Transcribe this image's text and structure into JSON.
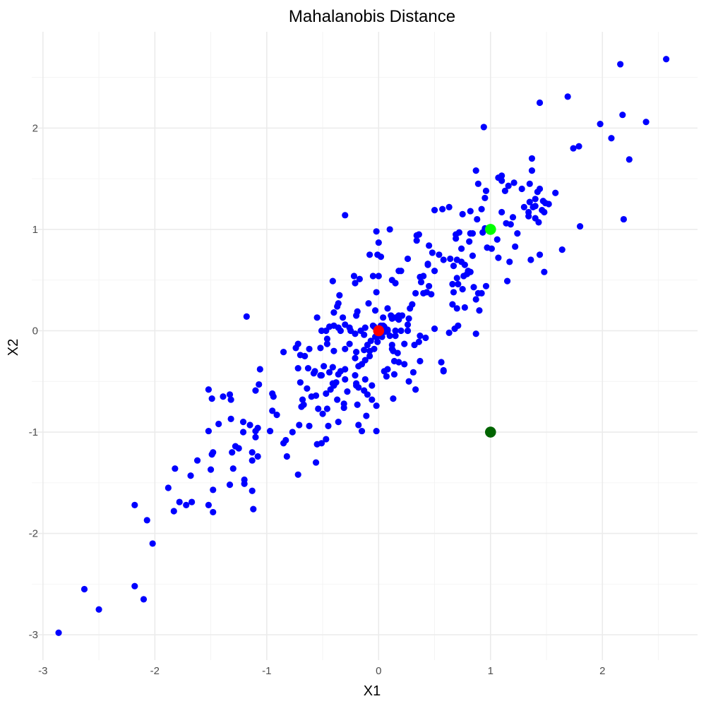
{
  "chart_data": {
    "type": "scatter",
    "title": "Mahalanobis Distance",
    "xlabel": "X1",
    "ylabel": "X2",
    "xlim": [
      -3.1,
      2.85
    ],
    "ylim": [
      -3.25,
      2.95
    ],
    "x_ticks": [
      -3,
      -2,
      -1,
      0,
      1,
      2
    ],
    "y_ticks": [
      -3,
      -2,
      -1,
      0,
      1,
      2
    ],
    "grid": true,
    "colors": {
      "points": "#0000ff",
      "center": "#ff0000",
      "light_green": "#00ff00",
      "dark_green": "#006400"
    },
    "highlights": [
      {
        "x": 0,
        "y": 0,
        "color": "#ff0000"
      },
      {
        "x": 1,
        "y": 1,
        "color": "#00ff00"
      },
      {
        "x": 1,
        "y": -1,
        "color": "#006400"
      }
    ],
    "points": [
      [
        -2.86,
        -2.98
      ],
      [
        -2.63,
        -2.55
      ],
      [
        -2.5,
        -2.75
      ],
      [
        -2.18,
        -2.52
      ],
      [
        -2.1,
        -2.65
      ],
      [
        -2.02,
        -2.1
      ],
      [
        -2.07,
        -1.87
      ],
      [
        -2.18,
        -1.72
      ],
      [
        -1.88,
        -1.55
      ],
      [
        -1.83,
        -1.78
      ],
      [
        -1.78,
        -1.69
      ],
      [
        -1.72,
        -1.72
      ],
      [
        -1.67,
        -1.69
      ],
      [
        -1.82,
        -1.36
      ],
      [
        -1.68,
        -1.43
      ],
      [
        -1.62,
        -1.28
      ],
      [
        -1.52,
        -1.72
      ],
      [
        -1.48,
        -1.79
      ],
      [
        -1.48,
        -1.57
      ],
      [
        -1.5,
        -1.37
      ],
      [
        -1.49,
        -1.22
      ],
      [
        -1.48,
        -1.2
      ],
      [
        -1.52,
        -0.99
      ],
      [
        -1.43,
        -0.92
      ],
      [
        -1.52,
        -0.58
      ],
      [
        -1.49,
        -0.67
      ],
      [
        -1.39,
        -0.65
      ],
      [
        -1.33,
        -1.52
      ],
      [
        -1.3,
        -1.36
      ],
      [
        -1.31,
        -1.2
      ],
      [
        -1.28,
        -1.14
      ],
      [
        -1.25,
        -1.16
      ],
      [
        -1.2,
        -1.47
      ],
      [
        -1.2,
        -1.51
      ],
      [
        -1.13,
        -1.58
      ],
      [
        -1.12,
        -1.76
      ],
      [
        -1.13,
        -1.28
      ],
      [
        -1.13,
        -1.2
      ],
      [
        -1.08,
        -1.24
      ],
      [
        -1.1,
        -1.05
      ],
      [
        -1.1,
        -0.99
      ],
      [
        -1.08,
        -0.96
      ],
      [
        -1.21,
        -0.9
      ],
      [
        -1.21,
        -1.0
      ],
      [
        -1.15,
        -0.93
      ],
      [
        -1.32,
        -0.87
      ],
      [
        -1.33,
        -0.63
      ],
      [
        -1.32,
        -0.68
      ],
      [
        -1.1,
        -0.59
      ],
      [
        -1.07,
        -0.53
      ],
      [
        -1.06,
        -0.38
      ],
      [
        -0.95,
        -0.62
      ],
      [
        -0.94,
        -0.65
      ],
      [
        -0.95,
        -0.79
      ],
      [
        -0.91,
        -0.83
      ],
      [
        -0.97,
        -0.99
      ],
      [
        -1.18,
        0.14
      ],
      [
        -0.85,
        -1.11
      ],
      [
        -0.83,
        -1.08
      ],
      [
        -0.82,
        -1.24
      ],
      [
        -0.72,
        -1.42
      ],
      [
        -0.77,
        -1.0
      ],
      [
        -0.71,
        -0.93
      ],
      [
        -0.68,
        -0.68
      ],
      [
        -0.69,
        -0.75
      ],
      [
        -0.67,
        -0.73
      ],
      [
        -0.7,
        -0.51
      ],
      [
        -0.72,
        -0.37
      ],
      [
        -0.64,
        -0.57
      ],
      [
        -0.6,
        -0.65
      ],
      [
        -0.62,
        -0.94
      ],
      [
        -0.56,
        -1.3
      ],
      [
        -0.55,
        -1.12
      ],
      [
        -0.51,
        -1.11
      ],
      [
        -0.47,
        -1.07
      ],
      [
        -0.45,
        -0.94
      ],
      [
        -0.46,
        -0.77
      ],
      [
        -0.47,
        -0.62
      ],
      [
        -0.54,
        -0.77
      ],
      [
        -0.56,
        -0.64
      ],
      [
        -0.63,
        -0.37
      ],
      [
        -0.66,
        -0.25
      ],
      [
        -0.7,
        -0.24
      ],
      [
        -0.72,
        -0.13
      ],
      [
        -0.85,
        -0.21
      ],
      [
        -0.74,
        -0.17
      ],
      [
        -0.62,
        -0.18
      ],
      [
        -0.57,
        -0.4
      ],
      [
        -0.52,
        -0.44
      ],
      [
        -0.51,
        -0.44
      ],
      [
        -0.49,
        -0.35
      ],
      [
        -0.44,
        -0.41
      ],
      [
        -0.41,
        -0.36
      ],
      [
        -0.41,
        -0.52
      ],
      [
        -0.4,
        -0.54
      ],
      [
        -0.38,
        -0.51
      ],
      [
        -0.36,
        -0.43
      ],
      [
        -0.34,
        -0.4
      ],
      [
        -0.3,
        -0.48
      ],
      [
        -0.28,
        -0.6
      ],
      [
        -0.31,
        -0.72
      ],
      [
        -0.36,
        -0.9
      ],
      [
        -0.31,
        -0.76
      ],
      [
        -0.2,
        -0.52
      ],
      [
        -0.2,
        -0.54
      ],
      [
        -0.18,
        -0.56
      ],
      [
        -0.19,
        -0.73
      ],
      [
        -0.18,
        -0.93
      ],
      [
        -0.15,
        -0.99
      ],
      [
        -0.11,
        -0.84
      ],
      [
        -0.06,
        -0.54
      ],
      [
        -0.02,
        -0.74
      ],
      [
        -0.02,
        -0.99
      ],
      [
        -0.13,
        -0.59
      ],
      [
        -0.12,
        -0.48
      ],
      [
        -0.12,
        -0.29
      ],
      [
        -0.2,
        -0.21
      ],
      [
        -0.26,
        -0.13
      ],
      [
        -0.3,
        -0.18
      ],
      [
        -0.3,
        -0.38
      ],
      [
        -0.18,
        -0.35
      ],
      [
        -0.15,
        -0.33
      ],
      [
        -0.08,
        -0.25
      ],
      [
        -0.08,
        -0.2
      ],
      [
        -0.04,
        -0.18
      ],
      [
        -0.07,
        -0.1
      ],
      [
        -0.03,
        -0.06
      ],
      [
        0.0,
        -0.05
      ],
      [
        -0.55,
        0.13
      ],
      [
        -0.51,
        0.0
      ],
      [
        -0.46,
        -0.13
      ],
      [
        -0.4,
        -0.2
      ],
      [
        -0.36,
        0.03
      ],
      [
        -0.34,
        0.0
      ],
      [
        -0.3,
        0.06
      ],
      [
        -0.26,
        0.03
      ],
      [
        -0.25,
        0.0
      ],
      [
        -0.21,
        -0.03
      ],
      [
        -0.16,
        0.0
      ],
      [
        -0.13,
        -0.04
      ],
      [
        -0.12,
        0.03
      ],
      [
        -0.05,
        0.05
      ],
      [
        -0.04,
        0.04
      ],
      [
        0.05,
        0.04
      ],
      [
        0.08,
        0.01
      ],
      [
        0.1,
        -0.05
      ],
      [
        0.15,
        -0.05
      ],
      [
        0.15,
        0.0
      ],
      [
        0.2,
        0.0
      ],
      [
        0.23,
        -0.13
      ],
      [
        0.13,
        -0.2
      ],
      [
        0.17,
        -0.22
      ],
      [
        0.12,
        -0.18
      ],
      [
        0.23,
        -0.33
      ],
      [
        0.27,
        -0.5
      ],
      [
        0.31,
        -0.41
      ],
      [
        0.33,
        -0.58
      ],
      [
        0.37,
        -0.3
      ],
      [
        0.36,
        -0.11
      ],
      [
        0.32,
        -0.14
      ],
      [
        0.37,
        -0.05
      ],
      [
        0.42,
        -0.07
      ],
      [
        0.5,
        0.02
      ],
      [
        0.56,
        -0.31
      ],
      [
        0.58,
        -0.4
      ],
      [
        0.58,
        -0.39
      ],
      [
        0.13,
        -0.67
      ],
      [
        0.07,
        -0.45
      ],
      [
        -0.01,
        -0.11
      ],
      [
        0.02,
        0.05
      ],
      [
        0.04,
        0.05
      ],
      [
        0.08,
        0.0
      ],
      [
        0.12,
        0.12
      ],
      [
        0.15,
        0.13
      ],
      [
        0.18,
        0.11
      ],
      [
        0.21,
        0.15
      ],
      [
        0.26,
        0.0
      ],
      [
        0.26,
        0.06
      ],
      [
        0.27,
        0.12
      ],
      [
        0.28,
        0.22
      ],
      [
        0.3,
        0.26
      ],
      [
        0.33,
        0.37
      ],
      [
        0.4,
        0.37
      ],
      [
        0.43,
        0.38
      ],
      [
        0.45,
        0.44
      ],
      [
        0.47,
        0.36
      ],
      [
        0.38,
        0.48
      ],
      [
        0.4,
        0.54
      ],
      [
        0.37,
        0.53
      ],
      [
        0.44,
        0.66
      ],
      [
        0.44,
        0.65
      ],
      [
        0.5,
        0.59
      ],
      [
        0.36,
        0.95
      ],
      [
        0.34,
        0.94
      ],
      [
        0.34,
        0.89
      ],
      [
        0.45,
        0.84
      ],
      [
        0.48,
        0.77
      ],
      [
        0.54,
        0.75
      ],
      [
        0.58,
        0.7
      ],
      [
        0.64,
        0.71
      ],
      [
        0.67,
        0.64
      ],
      [
        0.7,
        0.7
      ],
      [
        0.74,
        0.68
      ],
      [
        0.77,
        0.65
      ],
      [
        0.8,
        0.59
      ],
      [
        0.76,
        0.54
      ],
      [
        0.7,
        0.52
      ],
      [
        0.66,
        0.46
      ],
      [
        0.67,
        0.38
      ],
      [
        0.71,
        0.46
      ],
      [
        0.75,
        0.41
      ],
      [
        0.79,
        0.56
      ],
      [
        0.82,
        0.58
      ],
      [
        0.84,
        0.74
      ],
      [
        0.85,
        0.43
      ],
      [
        0.87,
        0.31
      ],
      [
        0.89,
        0.37
      ],
      [
        0.9,
        0.2
      ],
      [
        0.92,
        0.37
      ],
      [
        0.96,
        0.44
      ],
      [
        0.77,
        0.23
      ],
      [
        0.7,
        0.22
      ],
      [
        0.66,
        0.26
      ],
      [
        0.63,
        -0.02
      ],
      [
        0.68,
        0.02
      ],
      [
        0.71,
        0.05
      ],
      [
        0.87,
        -0.03
      ],
      [
        0.69,
        0.91
      ],
      [
        0.69,
        0.95
      ],
      [
        0.72,
        0.97
      ],
      [
        0.74,
        0.81
      ],
      [
        0.81,
        0.88
      ],
      [
        0.82,
        0.96
      ],
      [
        0.84,
        0.96
      ],
      [
        0.88,
        1.1
      ],
      [
        0.92,
        1.2
      ],
      [
        0.93,
        0.97
      ],
      [
        0.95,
        1.01
      ],
      [
        0.97,
        0.82
      ],
      [
        1.0,
        1.0
      ],
      [
        1.01,
        0.81
      ],
      [
        1.06,
        0.9
      ],
      [
        1.07,
        0.72
      ],
      [
        1.1,
        1.17
      ],
      [
        1.14,
        1.06
      ],
      [
        1.18,
        1.05
      ],
      [
        1.2,
        1.12
      ],
      [
        1.17,
        0.68
      ],
      [
        1.22,
        0.83
      ],
      [
        1.24,
        0.96
      ],
      [
        1.3,
        1.22
      ],
      [
        1.34,
        1.17
      ],
      [
        1.38,
        1.22
      ],
      [
        1.4,
        1.23
      ],
      [
        1.42,
        1.37
      ],
      [
        1.46,
        1.19
      ],
      [
        1.48,
        1.17
      ],
      [
        1.52,
        1.25
      ],
      [
        1.58,
        1.36
      ],
      [
        1.4,
        1.3
      ],
      [
        1.35,
        1.27
      ],
      [
        1.34,
        1.13
      ],
      [
        1.4,
        1.11
      ],
      [
        1.43,
        1.07
      ],
      [
        1.35,
        1.45
      ],
      [
        1.28,
        1.4
      ],
      [
        1.21,
        1.46
      ],
      [
        1.16,
        1.43
      ],
      [
        1.1,
        1.48
      ],
      [
        1.07,
        1.51
      ],
      [
        1.1,
        1.53
      ],
      [
        1.13,
        1.38
      ],
      [
        1.37,
        1.58
      ],
      [
        1.37,
        1.7
      ],
      [
        1.44,
        1.4
      ],
      [
        1.47,
        1.28
      ],
      [
        1.49,
        1.26
      ],
      [
        0.95,
        1.31
      ],
      [
        0.96,
        1.38
      ],
      [
        0.89,
        1.45
      ],
      [
        0.87,
        1.58
      ],
      [
        0.82,
        1.18
      ],
      [
        0.75,
        1.15
      ],
      [
        0.63,
        1.22
      ],
      [
        0.57,
        1.2
      ],
      [
        0.5,
        1.19
      ],
      [
        0.94,
        2.01
      ],
      [
        1.44,
        2.25
      ],
      [
        1.69,
        2.31
      ],
      [
        1.74,
        1.8
      ],
      [
        1.79,
        1.82
      ],
      [
        1.8,
        1.03
      ],
      [
        1.64,
        0.8
      ],
      [
        1.44,
        0.75
      ],
      [
        1.48,
        0.58
      ],
      [
        1.15,
        0.49
      ],
      [
        1.36,
        0.7
      ],
      [
        1.98,
        2.04
      ],
      [
        2.08,
        1.9
      ],
      [
        2.16,
        2.63
      ],
      [
        2.18,
        2.13
      ],
      [
        2.19,
        1.1
      ],
      [
        2.24,
        1.69
      ],
      [
        2.39,
        2.06
      ],
      [
        2.57,
        2.68
      ],
      [
        -0.3,
        1.14
      ],
      [
        -0.02,
        0.98
      ],
      [
        0.1,
        1.0
      ],
      [
        0.0,
        0.87
      ],
      [
        -0.08,
        0.75
      ],
      [
        -0.01,
        0.75
      ],
      [
        0.02,
        0.73
      ],
      [
        -0.22,
        0.54
      ],
      [
        -0.17,
        0.51
      ],
      [
        -0.05,
        0.54
      ],
      [
        0.0,
        0.54
      ],
      [
        0.12,
        0.5
      ],
      [
        0.15,
        0.47
      ],
      [
        0.18,
        0.59
      ],
      [
        0.2,
        0.59
      ],
      [
        0.26,
        0.71
      ],
      [
        -0.41,
        0.49
      ],
      [
        -0.35,
        0.35
      ],
      [
        -0.37,
        0.24
      ],
      [
        -0.36,
        0.27
      ],
      [
        -0.4,
        0.18
      ],
      [
        -0.32,
        0.13
      ],
      [
        -0.21,
        0.47
      ],
      [
        -0.19,
        0.19
      ],
      [
        -0.2,
        0.15
      ],
      [
        -0.09,
        0.27
      ],
      [
        -0.03,
        0.2
      ],
      [
        -0.02,
        0.38
      ],
      [
        0.08,
        0.22
      ],
      [
        0.11,
        0.15
      ],
      [
        0.18,
        0.15
      ],
      [
        0.04,
        0.13
      ],
      [
        -0.4,
        0.05
      ],
      [
        -0.47,
        0.0
      ],
      [
        -0.44,
        0.04
      ],
      [
        -0.52,
        -0.17
      ],
      [
        -0.46,
        -0.08
      ],
      [
        -0.58,
        -0.42
      ],
      [
        -0.43,
        -0.58
      ],
      [
        -0.5,
        -0.82
      ],
      [
        -0.37,
        -0.68
      ],
      [
        -0.21,
        -0.44
      ],
      [
        -0.21,
        -0.27
      ],
      [
        -0.13,
        -0.19
      ],
      [
        -0.1,
        -0.14
      ],
      [
        0.03,
        -0.06
      ],
      [
        0.06,
        -0.01
      ],
      [
        0.12,
        -0.14
      ],
      [
        0.14,
        -0.3
      ],
      [
        0.18,
        -0.31
      ],
      [
        0.08,
        -0.38
      ],
      [
        0.05,
        -0.4
      ],
      [
        0.14,
        -0.43
      ],
      [
        -0.06,
        -0.68
      ],
      [
        -0.1,
        -0.63
      ]
    ]
  }
}
